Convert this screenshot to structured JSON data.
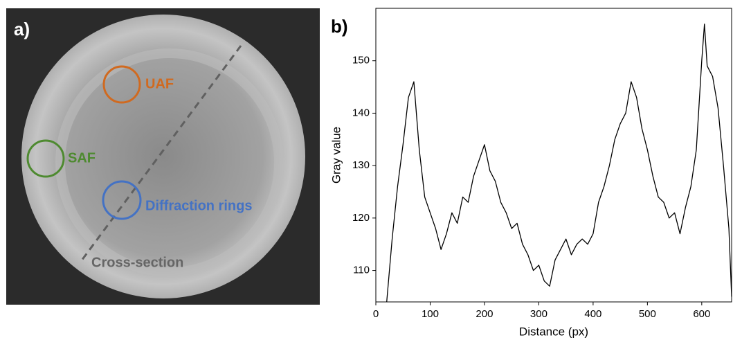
{
  "image_panel": {
    "label": "a)",
    "annotations": [
      "UAF",
      "SAF",
      "Diffraction rings",
      "Cross-section"
    ]
  },
  "chart_data": {
    "type": "line",
    "panel_label": "b)",
    "x_label": "Distance (px)",
    "y_label": "Gray value",
    "x": [
      20,
      30,
      40,
      50,
      60,
      70,
      80,
      90,
      100,
      110,
      120,
      130,
      140,
      150,
      160,
      170,
      180,
      190,
      200,
      210,
      220,
      230,
      240,
      250,
      260,
      270,
      280,
      290,
      300,
      310,
      320,
      330,
      340,
      350,
      360,
      370,
      380,
      390,
      400,
      410,
      420,
      430,
      440,
      450,
      460,
      470,
      480,
      490,
      500,
      510,
      520,
      530,
      540,
      550,
      560,
      570,
      580,
      590,
      600,
      605,
      610,
      620,
      630,
      640,
      650,
      655
    ],
    "values": [
      104,
      116,
      126,
      134,
      143,
      146,
      133,
      124,
      121,
      118,
      114,
      117,
      121,
      119,
      124,
      123,
      128,
      131,
      134,
      129,
      127,
      123,
      121,
      118,
      119,
      115,
      113,
      110,
      111,
      108,
      107,
      112,
      114,
      116,
      113,
      115,
      116,
      115,
      117,
      123,
      126,
      130,
      135,
      138,
      140,
      146,
      143,
      137,
      133,
      128,
      124,
      123,
      120,
      121,
      117,
      122,
      126,
      133,
      150,
      157,
      149,
      147,
      141,
      130,
      118,
      105
    ],
    "color": "#000000",
    "xlim": [
      0,
      655
    ],
    "ylim": [
      104,
      160
    ],
    "xticks": [
      0,
      100,
      200,
      300,
      400,
      500,
      600
    ],
    "yticks": [
      110,
      120,
      130,
      140,
      150
    ],
    "grid": false
  }
}
